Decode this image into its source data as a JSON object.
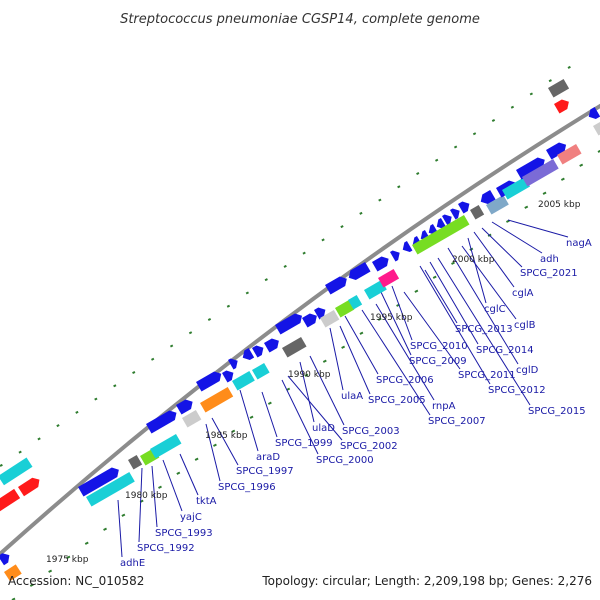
{
  "title": "Streptococcus pneumoniae CGSP14, complete genome",
  "footer": {
    "accession": "Accession: NC_010582",
    "summary": "Topology: circular; Length: 2,209,198 bp; Genes: 2,276"
  },
  "colors": {
    "backbone": "#8c8c8c",
    "ticks": "#2f7d2f",
    "label": "#1a1aa6",
    "cds": "#1414e6",
    "cyan": "#19cfd6",
    "orange": "#ff8c1a",
    "red": "#ff1a1a",
    "gray": "#666666",
    "lightgray": "#cccccc",
    "green": "#77dd22",
    "magenta": "#ff1a8c",
    "pink": "#f08080",
    "purple": "#7b6bd6",
    "steel": "#7fa8c8"
  },
  "scale_labels": [
    "1975 kbp",
    "1980 kbp",
    "1985 kbp",
    "1990 kbp",
    "1995 kbp",
    "2000 kbp",
    "2005 kbp"
  ],
  "gene_labels": [
    "adhE",
    "SPCG_1992",
    "SPCG_1993",
    "yajC",
    "tktA",
    "SPCG_1996",
    "SPCG_1997",
    "araD",
    "SPCG_1999",
    "SPCG_2000",
    "ulaD",
    "SPCG_2002",
    "SPCG_2003",
    "ulaA",
    "SPCG_2005",
    "SPCG_2006",
    "rnpA",
    "SPCG_2007",
    "SPCG_2009",
    "SPCG_2010",
    "SPCG_2011",
    "SPCG_2012",
    "SPCG_2013",
    "SPCG_2014",
    "SPCG_2015",
    "cglD",
    "cglB",
    "cglC",
    "cglA",
    "SPCG_2021",
    "adh",
    "nagA"
  ]
}
